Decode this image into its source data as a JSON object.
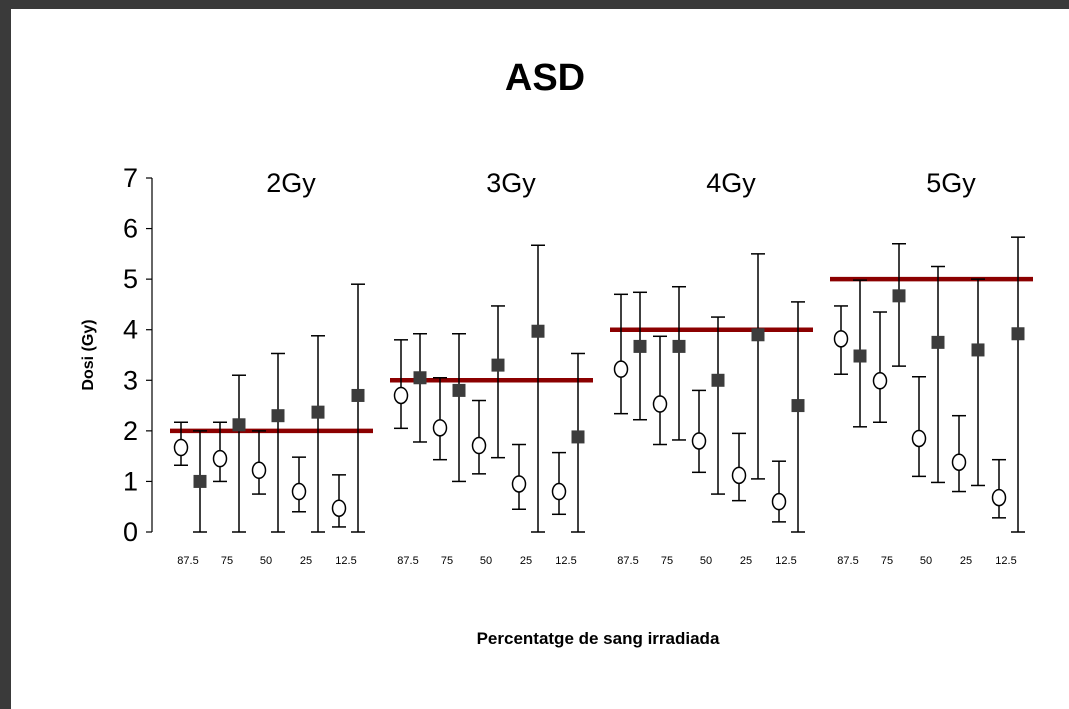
{
  "chart_data": {
    "type": "scatter",
    "title": "ASD",
    "xlabel": "Percentatge de sang irradiada",
    "ylabel": "Dosi (Gy)",
    "ylim": [
      0,
      7
    ],
    "yticks": [
      "0",
      "1",
      "2",
      "3",
      "4",
      "5",
      "6",
      "7"
    ],
    "categories": [
      "87.5",
      "75",
      "50",
      "25",
      "12.5"
    ],
    "groups": [
      {
        "label": "2Gy",
        "reference_dose": 2,
        "open_circle": [
          {
            "y": 1.67,
            "low": 1.32,
            "high": 2.17
          },
          {
            "y": 1.45,
            "low": 1.0,
            "high": 2.17
          },
          {
            "y": 1.22,
            "low": 0.75,
            "high": 2.0
          },
          {
            "y": 0.8,
            "low": 0.4,
            "high": 1.48
          },
          {
            "y": 0.47,
            "low": 0.1,
            "high": 1.13
          }
        ],
        "filled_square": [
          {
            "y": 1.0,
            "low": 0.0,
            "high": 2.0
          },
          {
            "y": 2.12,
            "low": 0.0,
            "high": 3.1
          },
          {
            "y": 2.3,
            "low": 0.0,
            "high": 3.53
          },
          {
            "y": 2.37,
            "low": 0.0,
            "high": 3.88
          },
          {
            "y": 2.7,
            "low": 0.0,
            "high": 4.9
          }
        ]
      },
      {
        "label": "3Gy",
        "reference_dose": 3,
        "open_circle": [
          {
            "y": 2.7,
            "low": 2.05,
            "high": 3.8
          },
          {
            "y": 2.06,
            "low": 1.43,
            "high": 3.05
          },
          {
            "y": 1.71,
            "low": 1.15,
            "high": 2.6
          },
          {
            "y": 0.95,
            "low": 0.45,
            "high": 1.73
          },
          {
            "y": 0.8,
            "low": 0.35,
            "high": 1.57
          }
        ],
        "filled_square": [
          {
            "y": 3.05,
            "low": 1.78,
            "high": 3.92
          },
          {
            "y": 2.8,
            "low": 1.0,
            "high": 3.92
          },
          {
            "y": 3.3,
            "low": 1.47,
            "high": 4.47
          },
          {
            "y": 3.97,
            "low": 0.0,
            "high": 5.67
          },
          {
            "y": 1.88,
            "low": 0.0,
            "high": 3.53
          }
        ]
      },
      {
        "label": "4Gy",
        "reference_dose": 4,
        "open_circle": [
          {
            "y": 3.22,
            "low": 2.34,
            "high": 4.7
          },
          {
            "y": 2.53,
            "low": 1.73,
            "high": 3.87
          },
          {
            "y": 1.8,
            "low": 1.18,
            "high": 2.8
          },
          {
            "y": 1.12,
            "low": 0.62,
            "high": 1.95
          },
          {
            "y": 0.6,
            "low": 0.2,
            "high": 1.4
          }
        ],
        "filled_square": [
          {
            "y": 3.67,
            "low": 2.22,
            "high": 4.74
          },
          {
            "y": 3.67,
            "low": 1.82,
            "high": 4.85
          },
          {
            "y": 3.0,
            "low": 0.75,
            "high": 4.25
          },
          {
            "y": 3.9,
            "low": 1.05,
            "high": 5.5
          },
          {
            "y": 2.5,
            "low": 0.0,
            "high": 4.55
          }
        ]
      },
      {
        "label": "5Gy",
        "reference_dose": 5,
        "open_circle": [
          {
            "y": 3.82,
            "low": 3.12,
            "high": 4.47
          },
          {
            "y": 2.99,
            "low": 2.17,
            "high": 4.35
          },
          {
            "y": 1.85,
            "low": 1.1,
            "high": 3.07
          },
          {
            "y": 1.38,
            "low": 0.8,
            "high": 2.3
          },
          {
            "y": 0.68,
            "low": 0.28,
            "high": 1.43
          }
        ],
        "filled_square": [
          {
            "y": 3.48,
            "low": 2.08,
            "high": 4.98
          },
          {
            "y": 4.67,
            "low": 3.28,
            "high": 5.7
          },
          {
            "y": 3.75,
            "low": 0.98,
            "high": 5.25
          },
          {
            "y": 3.6,
            "low": 0.92,
            "high": 5.0
          },
          {
            "y": 3.92,
            "low": 0.0,
            "high": 5.83
          }
        ]
      }
    ],
    "colors": {
      "reference_line": "#8b0000",
      "square": "#3c3c3c",
      "circle_fill": "#ffffff",
      "ink": "#000000"
    },
    "grid": false,
    "legend": "none"
  }
}
